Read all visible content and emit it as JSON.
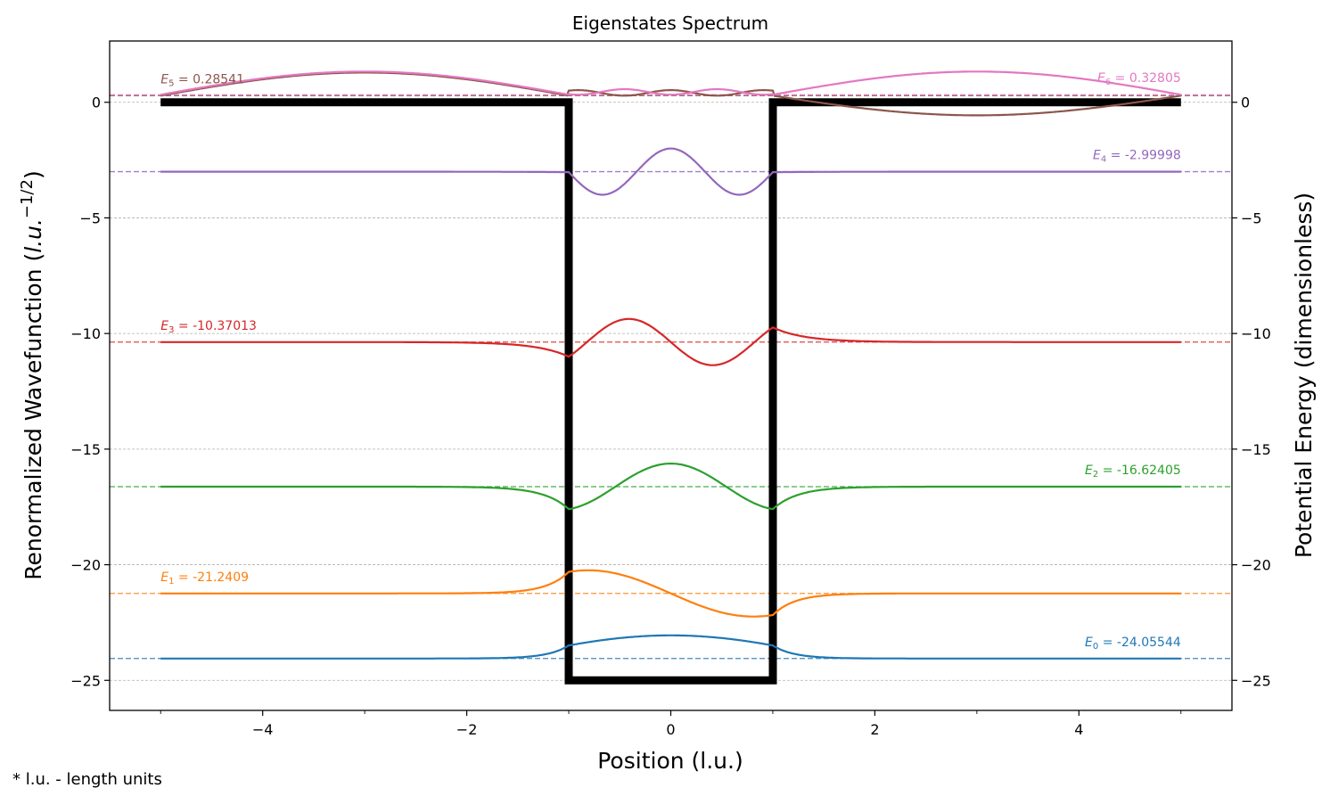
{
  "chart_data": {
    "type": "line",
    "title": "Eigenstates Spectrum",
    "xlabel": "Position (l.u.)",
    "ylabel_left": "Renormalized Wavefunction (l.u.^-1/2)",
    "ylabel_left_parts": {
      "main": "Renormalized Wavefunction (",
      "italic": "l.u.",
      "minus": "−",
      "sup": "1/2",
      "close": ")"
    },
    "ylabel_right": "Potential Energy (dimensionless)",
    "xlim": [
      -5.5,
      5.5
    ],
    "ylim": [
      -26.3,
      2.65
    ],
    "x_ticks": [
      -4,
      -2,
      0,
      2,
      4
    ],
    "x_tick_labels": [
      "−4",
      "−2",
      "0",
      "2",
      "4"
    ],
    "x_minor_ticks": [
      -5,
      -3,
      -1,
      1,
      3,
      5
    ],
    "y_ticks": [
      0,
      -5,
      -10,
      -15,
      -20,
      -25
    ],
    "y_tick_labels": [
      "0",
      "−5",
      "−10",
      "−15",
      "−20",
      "−25"
    ],
    "grid": "horizontal dashed",
    "potential": {
      "name": "potential well",
      "color": "#000000",
      "x": [
        -5,
        -1,
        -1,
        1,
        1,
        5
      ],
      "y": [
        0,
        0,
        -25,
        -25,
        0,
        0
      ]
    },
    "series": [
      {
        "level": 0,
        "energy": -24.05544,
        "label_prefix": "E",
        "label_sub": "0",
        "label_value": "= -24.05544",
        "color": "#1f77b4",
        "label_anchor": "right"
      },
      {
        "level": 1,
        "energy": -21.2409,
        "label_prefix": "E",
        "label_sub": "1",
        "label_value": "= -21.2409",
        "color": "#ff7f0e",
        "label_anchor": "left"
      },
      {
        "level": 2,
        "energy": -16.62405,
        "label_prefix": "E",
        "label_sub": "2",
        "label_value": "= -16.62405",
        "color": "#2ca02c",
        "label_anchor": "right"
      },
      {
        "level": 3,
        "energy": -10.37013,
        "label_prefix": "E",
        "label_sub": "3",
        "label_value": "= -10.37013",
        "color": "#d62728",
        "label_anchor": "left"
      },
      {
        "level": 4,
        "energy": -2.99998,
        "label_prefix": "E",
        "label_sub": "4",
        "label_value": "= -2.99998",
        "color": "#9467bd",
        "label_anchor": "right"
      },
      {
        "level": 5,
        "energy": 0.28541,
        "label_prefix": "E",
        "label_sub": "5",
        "label_value": "= 0.28541",
        "color": "#8c564b",
        "label_anchor": "left"
      },
      {
        "level": 6,
        "energy": 0.32805,
        "label_prefix": "E",
        "label_sub": "6",
        "label_value": "= 0.32805",
        "color": "#e377c2",
        "label_anchor": "right"
      }
    ]
  },
  "footnote": "* l.u. - length units"
}
